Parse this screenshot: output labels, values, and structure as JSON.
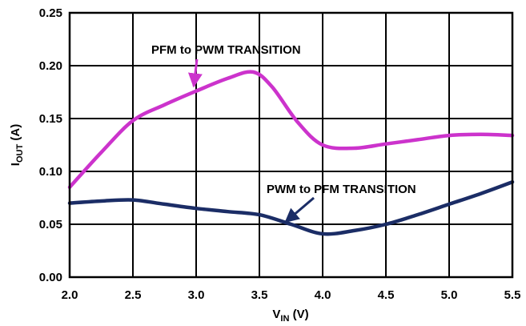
{
  "chart_data": {
    "type": "line",
    "xlabel": {
      "main": "V",
      "sub": "IN",
      "unit": " (V)"
    },
    "ylabel": {
      "main": "I",
      "sub": "OUT",
      "unit": " (A)"
    },
    "xlim": [
      2.0,
      5.5
    ],
    "ylim": [
      0.0,
      0.25
    ],
    "x_ticks": [
      "2.0",
      "2.5",
      "3.0",
      "3.5",
      "4.0",
      "4.5",
      "5.0",
      "5.5"
    ],
    "y_ticks": [
      "0.00",
      "0.05",
      "0.10",
      "0.15",
      "0.20",
      "0.25"
    ],
    "grid": true,
    "series": [
      {
        "color": "#cc33cc",
        "points": [
          [
            2.0,
            0.085
          ],
          [
            2.25,
            0.118
          ],
          [
            2.5,
            0.148
          ],
          [
            2.75,
            0.163
          ],
          [
            3.0,
            0.176
          ],
          [
            3.25,
            0.188
          ],
          [
            3.45,
            0.194
          ],
          [
            3.6,
            0.18
          ],
          [
            3.8,
            0.147
          ],
          [
            4.0,
            0.125
          ],
          [
            4.25,
            0.122
          ],
          [
            4.5,
            0.126
          ],
          [
            4.75,
            0.13
          ],
          [
            5.0,
            0.134
          ],
          [
            5.25,
            0.135
          ],
          [
            5.5,
            0.134
          ]
        ]
      },
      {
        "color": "#1b2d66",
        "points": [
          [
            2.0,
            0.07
          ],
          [
            2.25,
            0.072
          ],
          [
            2.5,
            0.073
          ],
          [
            2.75,
            0.069
          ],
          [
            3.0,
            0.065
          ],
          [
            3.25,
            0.062
          ],
          [
            3.5,
            0.059
          ],
          [
            3.75,
            0.05
          ],
          [
            4.0,
            0.041
          ],
          [
            4.25,
            0.044
          ],
          [
            4.5,
            0.05
          ],
          [
            4.75,
            0.059
          ],
          [
            5.0,
            0.069
          ],
          [
            5.25,
            0.079
          ],
          [
            5.5,
            0.09
          ]
        ]
      }
    ],
    "annotations": [
      {
        "text": "PFM to PWM TRANSITION",
        "series": 0,
        "points_to": [
          3.0,
          0.176
        ]
      },
      {
        "text": "PWM to PFM TRANSITION",
        "series": 1,
        "points_to": [
          3.72,
          0.05
        ]
      }
    ]
  }
}
